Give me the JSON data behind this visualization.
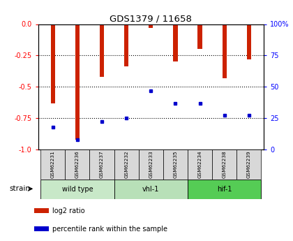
{
  "title": "GDS1379 / 11658",
  "samples": [
    "GSM62231",
    "GSM62236",
    "GSM62237",
    "GSM62232",
    "GSM62233",
    "GSM62235",
    "GSM62234",
    "GSM62238",
    "GSM62239"
  ],
  "log2_ratios": [
    -0.63,
    -0.92,
    -0.42,
    -0.34,
    -0.03,
    -0.3,
    -0.2,
    -0.43,
    -0.28
  ],
  "percentile_ranks": [
    18,
    8,
    22,
    25,
    47,
    37,
    37,
    27,
    27
  ],
  "groups": [
    {
      "label": "wild type",
      "indices": [
        0,
        1,
        2
      ],
      "color": "#c8e8c8"
    },
    {
      "label": "vhl-1",
      "indices": [
        3,
        4,
        5
      ],
      "color": "#b8e0b8"
    },
    {
      "label": "hif-1",
      "indices": [
        6,
        7,
        8
      ],
      "color": "#55cc55"
    }
  ],
  "bar_color": "#cc2200",
  "dot_color": "#0000cc",
  "ylim_left": [
    -1.0,
    0.0
  ],
  "ylim_right": [
    0,
    100
  ],
  "yticks_left": [
    0.0,
    -0.25,
    -0.5,
    -0.75,
    -1.0
  ],
  "yticks_right": [
    0,
    25,
    50,
    75,
    100
  ],
  "bg_color": "#ffffff",
  "strain_label": "strain",
  "legend_items": [
    {
      "label": "log2 ratio",
      "color": "#cc2200"
    },
    {
      "label": "percentile rank within the sample",
      "color": "#0000cc"
    }
  ]
}
